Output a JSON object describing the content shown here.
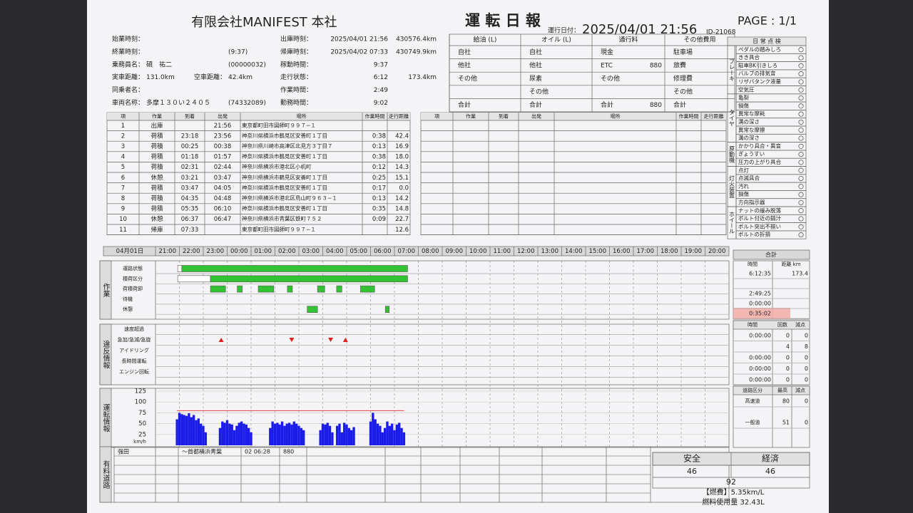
{
  "header": {
    "company": "有限会社MANIFEST 本社",
    "title": "運 転 日 報",
    "run_date_label": "運行日付：",
    "run_date": "2025/04/01 21:56",
    "id": "ID-21068",
    "page": "PAGE : 1/1"
  },
  "info_left": [
    {
      "label": "始業時刻："
    },
    {
      "label": "終業時刻：",
      "extra": "(9:37)"
    },
    {
      "label": "乗務員名：",
      "value": "碩　祐二",
      "extra": "(00000032)"
    },
    {
      "label": "実車距離：",
      "value": "131.0km",
      "label2": "空車距離：",
      "value2": "42.4km"
    },
    {
      "label": "同乗者名："
    },
    {
      "label": "車両名称：",
      "value": "多摩１３０い２４０５",
      "extra": "(74332089)"
    }
  ],
  "info_mid": [
    {
      "label": "出庫時刻：",
      "value": "2025/04/01 21:56",
      "extra": "430576.4km"
    },
    {
      "label": "帰庫時刻：",
      "value": "2025/04/02 07:33",
      "extra": "430749.9km"
    },
    {
      "label": "稼動時間：",
      "value": "9:37"
    },
    {
      "label": "走行状態：",
      "value": "6:12",
      "extra": "173.4km"
    },
    {
      "label": "作業時間：",
      "value": "2:49"
    },
    {
      "label": "勤務時間：",
      "value": "9:02"
    }
  ],
  "costs": {
    "headers": [
      "給油 (L)",
      "オイル (L)",
      "通行料",
      "その他費用"
    ],
    "rows": [
      [
        "自社",
        null,
        "自社",
        null,
        "現金",
        null,
        "駐車場",
        null
      ],
      [
        "他社",
        null,
        "他社",
        null,
        "ETC",
        "880",
        "旅費",
        null
      ],
      [
        "その他",
        null,
        "尿素",
        null,
        "その他",
        null,
        "修理費",
        null
      ],
      [
        null,
        null,
        "その他",
        null,
        null,
        null,
        "その他",
        null
      ],
      [
        "合計",
        null,
        "合計",
        null,
        "合計",
        "880",
        "合計",
        null
      ]
    ]
  },
  "checklist": {
    "title": "日 常 点 検",
    "groups": [
      {
        "label": "ブレーキ",
        "items": [
          "ペダルの踏みしろ",
          "きき具合",
          "駐車BK引きしろ",
          "バルブの排気音",
          "リザバタンク液量",
          "空気圧"
        ]
      },
      {
        "label": "タイヤ",
        "items": [
          "亀裂",
          "損傷",
          "異常な摩耗",
          "溝の深さ",
          "異常な摩擦",
          "溝の深さ"
        ]
      },
      {
        "label": "原動機",
        "items": [
          "かかり具合・異音",
          "ぎょうすい",
          "圧力の上がり具合"
        ]
      },
      {
        "label": "灯火装置",
        "items": [
          "点灯",
          "点滅具合",
          "汚れ",
          "損傷",
          "方向指示器"
        ]
      },
      {
        "label": "ホイール",
        "items": [
          "ナットの緩み脱落",
          "ボルト付近の錆汁",
          "ボルト突出不揃い",
          "ボルトの折損"
        ]
      }
    ]
  },
  "trips": {
    "headers": [
      "項",
      "作業",
      "到着",
      "出発",
      "場所",
      "作業時間",
      "走行距離"
    ],
    "rows": [
      [
        "1",
        "出庫",
        null,
        "21:56",
        "東京都町田市図師町９９７−１",
        null,
        null
      ],
      [
        "2",
        "荷積",
        "23:18",
        "23:56",
        "神奈川県横浜市鶴見区安善町１丁目",
        "0:38",
        "42.4"
      ],
      [
        "3",
        "荷積",
        "00:25",
        "00:38",
        "神奈川県川崎市高津区北見方３丁目７",
        "0:13",
        "16.9"
      ],
      [
        "4",
        "荷積",
        "01:18",
        "01:57",
        "神奈川県横浜市鶴見区安善町１丁目",
        "0:38",
        "18.0"
      ],
      [
        "5",
        "荷積",
        "02:31",
        "02:44",
        "神奈川県横浜市港北区小机町",
        "0:12",
        "14.3"
      ],
      [
        "6",
        "休憩",
        "03:21",
        "03:47",
        "神奈川県横浜市鶴見区安善町１丁目",
        "0:25",
        "15.1"
      ],
      [
        "7",
        "荷積",
        "03:47",
        "04:05",
        "神奈川県横浜市鶴見区安善町１丁目",
        "0:17",
        "0.0"
      ],
      [
        "8",
        "荷積",
        "04:35",
        "04:48",
        "神奈川県横浜市港北区鳥山町９６３−１",
        "0:13",
        "14.2"
      ],
      [
        "9",
        "荷積",
        "05:35",
        "06:10",
        "神奈川県横浜市鶴見区安善町１丁目",
        "0:35",
        "14.8"
      ],
      [
        "10",
        "休憩",
        "06:37",
        "06:47",
        "神奈川県横浜市青葉区鉄町７５２",
        "0:09",
        "22.7"
      ],
      [
        "11",
        "帰庫",
        "07:33",
        null,
        "東京都町田市図師町９９７−１",
        null,
        "12.6"
      ]
    ]
  },
  "timeline": {
    "date_label": "04月01日",
    "xlim": [
      21,
      45
    ],
    "xticks": [
      {
        "value": 21,
        "label": "21:00"
      },
      {
        "value": 22,
        "label": "22:00"
      },
      {
        "value": 23,
        "label": "23:00"
      },
      {
        "value": 24,
        "label": "00:00"
      },
      {
        "value": 25,
        "label": "01:00"
      },
      {
        "value": 26,
        "label": "02:00"
      },
      {
        "value": 27,
        "label": "03:00"
      },
      {
        "value": 28,
        "label": "04:00"
      },
      {
        "value": 29,
        "label": "05:00"
      },
      {
        "value": 30,
        "label": "06:00"
      },
      {
        "value": 31,
        "label": "07:00"
      },
      {
        "value": 32,
        "label": "08:00"
      },
      {
        "value": 33,
        "label": "09:00"
      },
      {
        "value": 34,
        "label": "10:00"
      },
      {
        "value": 35,
        "label": "11:00"
      },
      {
        "value": 36,
        "label": "12:00"
      },
      {
        "value": 37,
        "label": "13:00"
      },
      {
        "value": 38,
        "label": "14:00"
      },
      {
        "value": 39,
        "label": "15:00"
      },
      {
        "value": 40,
        "label": "16:00"
      },
      {
        "value": 41,
        "label": "17:00"
      },
      {
        "value": 42,
        "label": "18:00"
      },
      {
        "value": 43,
        "label": "19:00"
      },
      {
        "value": 44,
        "label": "20:00"
      }
    ]
  },
  "work": {
    "label": "作業",
    "rows": [
      {
        "name": "運路状態",
        "intervals": [
          {
            "start": 21.93,
            "end": 22.1,
            "color": "#ffffff"
          },
          {
            "start": 22.1,
            "end": 31.55,
            "color": "#33c233"
          }
        ]
      },
      {
        "name": "積荷区分",
        "intervals": [
          {
            "start": 21.93,
            "end": 23.3,
            "color": "#ffffff"
          },
          {
            "start": 23.3,
            "end": 31.55,
            "color": "#33c233"
          }
        ]
      },
      {
        "name": "荷積荷卸",
        "intervals": [
          {
            "start": 23.3,
            "end": 23.93,
            "color": "#33c233"
          },
          {
            "start": 24.42,
            "end": 24.63,
            "color": "#33c233"
          },
          {
            "start": 25.3,
            "end": 25.95,
            "color": "#33c233"
          },
          {
            "start": 26.52,
            "end": 26.73,
            "color": "#33c233"
          },
          {
            "start": 27.78,
            "end": 28.08,
            "color": "#33c233"
          },
          {
            "start": 28.58,
            "end": 28.8,
            "color": "#33c233"
          },
          {
            "start": 29.58,
            "end": 30.17,
            "color": "#33c233"
          }
        ]
      },
      {
        "name": "待機",
        "intervals": []
      },
      {
        "name": "休憩",
        "intervals": [
          {
            "start": 27.35,
            "end": 27.78,
            "color": "#33c233"
          },
          {
            "start": 30.62,
            "end": 30.78,
            "color": "#33c233"
          }
        ]
      }
    ],
    "totals": {
      "title": "合計",
      "headers": [
        "時間",
        "距離 km"
      ],
      "rows": [
        [
          "6:12:35",
          "173.4"
        ],
        [
          null,
          null
        ],
        [
          "2:49:25",
          null
        ],
        [
          "0:00:00",
          null
        ],
        [
          "0:35:02",
          null
        ]
      ]
    }
  },
  "violations": {
    "label": "違反情報",
    "rows": [
      "速度超過",
      "急加/急減/急旋",
      "アイドリング",
      "長時間運転",
      "エンジン回転"
    ],
    "events": [
      {
        "x": 23.75,
        "dir": "up"
      },
      {
        "x": 26.7,
        "dir": "down"
      },
      {
        "x": 28.33,
        "dir": "down"
      },
      {
        "x": 28.95,
        "dir": "up"
      }
    ],
    "table": {
      "headers": [
        "時間",
        "回数",
        "減点"
      ],
      "rows": [
        [
          "0:00:00",
          "0",
          "0"
        ],
        [
          null,
          "4",
          "8"
        ],
        [
          "0:00:00",
          "0",
          "0"
        ],
        [
          "0:00:00",
          "0",
          "0"
        ],
        [
          "0:00:00",
          "0",
          "0"
        ]
      ]
    }
  },
  "driving": {
    "label": "運転情報",
    "type": "bar",
    "unit": "km/h",
    "ylim": [
      0,
      125
    ],
    "yticks": [
      25,
      50,
      75,
      100,
      125
    ],
    "color": "#1b1bea",
    "limit_line": 80,
    "x": [
      21.9,
      22,
      22.1,
      22.2,
      22.3,
      22.4,
      22.5,
      22.6,
      22.7,
      22.8,
      22.9,
      23,
      23.1,
      23.7,
      23.8,
      23.9,
      24,
      24.1,
      24.2,
      24.3,
      24.4,
      24.5,
      24.6,
      24.7,
      24.8,
      24.9,
      25,
      25.8,
      25.9,
      26,
      26.1,
      26.2,
      26.3,
      26.4,
      26.5,
      26.6,
      26.7,
      26.8,
      26.9,
      27,
      27.1,
      27.2,
      27.9,
      28,
      28.1,
      28.2,
      28.3,
      28.4,
      28.6,
      28.7,
      28.8,
      28.9,
      29,
      29.1,
      29.2,
      29.3,
      30,
      30.1,
      30.2,
      30.3,
      30.4,
      30.5,
      30.6,
      30.7,
      30.8,
      30.9,
      31,
      31.1,
      31.2,
      31.3,
      31.4
    ],
    "values": [
      60,
      75,
      72,
      70,
      68,
      74,
      65,
      70,
      58,
      62,
      50,
      45,
      30,
      40,
      55,
      52,
      58,
      50,
      48,
      35,
      45,
      52,
      55,
      50,
      48,
      40,
      30,
      40,
      55,
      50,
      52,
      48,
      55,
      45,
      50,
      52,
      48,
      55,
      50,
      45,
      40,
      35,
      35,
      50,
      48,
      52,
      45,
      30,
      45,
      50,
      30,
      52,
      48,
      40,
      35,
      42,
      55,
      75,
      60,
      50,
      45,
      30,
      40,
      55,
      45,
      50,
      35,
      48,
      52,
      40,
      30
    ],
    "table": {
      "headers": [
        "道路区分",
        "最高",
        "減点"
      ],
      "rows": [
        [
          "高速道",
          "80",
          "0"
        ],
        [
          "一般道",
          "51",
          "0"
        ]
      ]
    }
  },
  "toll": {
    "label": "有料道路",
    "rows": [
      [
        "強田",
        "～首都横浜青葉",
        "02 06:28",
        "880"
      ]
    ]
  },
  "score": {
    "headers": [
      "安全",
      "経済"
    ],
    "values": [
      "46",
      "46"
    ],
    "total": "92",
    "fuel_efficiency": "【燃費】5.35km/L",
    "fuel_used": "燃料使用量 32.43L"
  }
}
